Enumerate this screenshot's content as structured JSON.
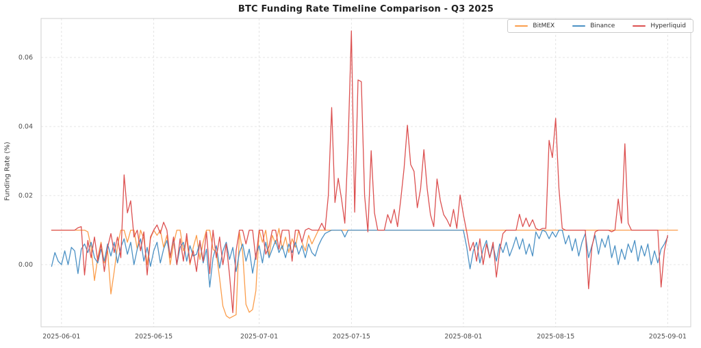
{
  "figure": {
    "title": "BTC Funding Rate Timeline Comparison - Q3 2025"
  },
  "chart_data": {
    "type": "line",
    "title": "BTC Funding Rate Timeline Comparison - Q3 2025",
    "xlabel": "",
    "ylabel": "Funding Rate (%)",
    "grid": true,
    "grid_style": "dashed",
    "legend_position": "upper right",
    "x_epoch_label": "2025-06-01",
    "x_start_day": -1.5,
    "x_step_days": 0.5,
    "xlim_days": [
      -3.1,
      95.5
    ],
    "ylim": [
      -0.018,
      0.0713
    ],
    "x_ticks": [
      {
        "day": 0,
        "label": "2025-06-01"
      },
      {
        "day": 14,
        "label": "2025-06-15"
      },
      {
        "day": 30,
        "label": "2025-07-01"
      },
      {
        "day": 44,
        "label": "2025-07-15"
      },
      {
        "day": 61,
        "label": "2025-08-01"
      },
      {
        "day": 75,
        "label": "2025-08-15"
      },
      {
        "day": 92,
        "label": "2025-09-01"
      }
    ],
    "y_ticks": [
      {
        "value": 0.0,
        "label": "0.00"
      },
      {
        "value": 0.02,
        "label": "0.02"
      },
      {
        "value": 0.04,
        "label": "0.04"
      },
      {
        "value": 0.06,
        "label": "0.06"
      }
    ],
    "series": [
      {
        "name": "BitMEX",
        "color": "#fb9d4b",
        "values": [
          0.01,
          0.01,
          0.01,
          0.01,
          0.01,
          0.01,
          0.01,
          0.01,
          0.01,
          0.01,
          0.01,
          0.0095,
          0.005,
          -0.0046,
          0.002,
          0.0065,
          0.0005,
          0.004,
          -0.0085,
          -0.002,
          0.0055,
          0.01,
          0.01,
          0.0065,
          0.01,
          0.01,
          0.0045,
          0.01,
          0.0075,
          0.0,
          0.0075,
          0.01,
          0.0085,
          0.01,
          0.005,
          0.0085,
          0.0,
          0.006,
          0.01,
          0.01,
          0.004,
          0.0075,
          0.0,
          0.005,
          0.0085,
          0.0015,
          0.0065,
          0.01,
          0.01,
          0.0045,
          0.0035,
          -0.004,
          -0.012,
          -0.0148,
          -0.0155,
          -0.015,
          -0.0145,
          0.0095,
          0.0035,
          -0.0115,
          -0.0138,
          -0.013,
          -0.0075,
          0.01,
          0.0065,
          0.01,
          0.0025,
          0.0085,
          0.006,
          0.0105,
          0.0045,
          0.008,
          0.0035,
          0.0075,
          0.005,
          0.01,
          0.0065,
          0.004,
          0.0085,
          0.006,
          0.008,
          0.01,
          0.01,
          0.01,
          0.01,
          0.01,
          0.01,
          0.01,
          0.01,
          0.01,
          0.01,
          0.01,
          0.01,
          0.01,
          0.01,
          0.01,
          0.01,
          0.01,
          0.01,
          0.01,
          0.01,
          0.01,
          0.01,
          0.01,
          0.01,
          0.01,
          0.01,
          0.01,
          0.01,
          0.01,
          0.01,
          0.01,
          0.01,
          0.01,
          0.01,
          0.01,
          0.01,
          0.01,
          0.01,
          0.01,
          0.01,
          0.01,
          0.01,
          0.01,
          0.01,
          0.01,
          0.01,
          0.01,
          0.01,
          0.01,
          0.01,
          0.01,
          0.01,
          0.01,
          0.01,
          0.01,
          0.01,
          0.01,
          0.01,
          0.01,
          0.01,
          0.01,
          0.01,
          0.01,
          0.01,
          0.01,
          0.01,
          0.01,
          0.01,
          0.01,
          0.01,
          0.01,
          0.01,
          0.01,
          0.01,
          0.01,
          0.01,
          0.01,
          0.01,
          0.01,
          0.01,
          0.01,
          0.01,
          0.01,
          0.01,
          0.01,
          0.01,
          0.01,
          0.01,
          0.01,
          0.01,
          0.01,
          0.01,
          0.01,
          0.01,
          0.01,
          0.01,
          0.01,
          0.01,
          0.01,
          0.01,
          0.01,
          0.01,
          0.01,
          0.01,
          0.01,
          0.01,
          0.01,
          0.01,
          0.01,
          0.01
        ]
      },
      {
        "name": "Binance",
        "color": "#4a90c4",
        "values": [
          -0.0005,
          0.0035,
          0.001,
          0.0,
          0.004,
          0.0,
          0.005,
          0.004,
          -0.0026,
          0.0045,
          0.006,
          0.0035,
          0.0065,
          0.002,
          0.0005,
          0.0045,
          0.001,
          0.006,
          0.0025,
          0.0065,
          0.0005,
          0.005,
          0.0075,
          0.003,
          0.0065,
          0.0,
          0.0045,
          0.0075,
          0.001,
          0.005,
          -0.0005,
          0.004,
          0.0065,
          0.0005,
          0.0045,
          0.007,
          0.0025,
          0.0075,
          0.0,
          0.005,
          0.0065,
          0.001,
          0.0055,
          0.0025,
          0.003,
          0.0065,
          0.0005,
          0.0045,
          -0.0065,
          0.002,
          0.0055,
          -0.001,
          0.004,
          0.0065,
          0.0015,
          0.005,
          -0.002,
          0.0035,
          0.006,
          0.001,
          0.0045,
          -0.0025,
          0.003,
          0.0055,
          0.0005,
          0.0065,
          0.002,
          0.0045,
          0.007,
          0.0035,
          0.0055,
          0.002,
          0.006,
          0.0035,
          0.0065,
          0.003,
          0.0055,
          0.002,
          0.006,
          0.0035,
          0.0025,
          0.0055,
          0.0075,
          0.009,
          0.0095,
          0.01,
          0.01,
          0.01,
          0.01,
          0.008,
          0.01,
          0.01,
          0.01,
          0.01,
          0.01,
          0.01,
          0.01,
          0.01,
          0.01,
          0.01,
          0.01,
          0.01,
          0.01,
          0.01,
          0.01,
          0.01,
          0.01,
          0.01,
          0.01,
          0.01,
          0.01,
          0.01,
          0.01,
          0.01,
          0.01,
          0.01,
          0.01,
          0.01,
          0.01,
          0.01,
          0.01,
          0.01,
          0.01,
          0.01,
          0.01,
          0.01,
          0.005,
          -0.0012,
          0.004,
          0.0065,
          0.0005,
          0.0045,
          0.007,
          0.002,
          0.0055,
          0.001,
          0.006,
          0.0035,
          0.0065,
          0.0025,
          0.005,
          0.008,
          0.0045,
          0.0075,
          0.003,
          0.006,
          0.0025,
          0.0095,
          0.0075,
          0.01,
          0.0095,
          0.0075,
          0.0095,
          0.008,
          0.01,
          0.01,
          0.006,
          0.0085,
          0.004,
          0.0075,
          0.0025,
          0.0065,
          0.009,
          0.002,
          0.0055,
          0.0085,
          0.003,
          0.0075,
          0.005,
          0.0085,
          0.002,
          0.0055,
          0.0,
          0.0045,
          0.0015,
          0.006,
          0.0035,
          0.007,
          0.001,
          0.0055,
          0.0025,
          0.006,
          0.0,
          0.004,
          0.0005,
          0.0045,
          0.006,
          0.008
        ]
      },
      {
        "name": "Hyperliquid",
        "color": "#dc5050",
        "values": [
          0.01,
          0.01,
          0.01,
          0.01,
          0.01,
          0.01,
          0.01,
          0.01,
          0.0107,
          0.011,
          -0.003,
          0.007,
          0.002,
          0.008,
          0.001,
          0.006,
          -0.002,
          0.005,
          0.009,
          0.0035,
          0.008,
          0.002,
          0.026,
          0.015,
          0.0185,
          0.008,
          0.01,
          0.004,
          0.0095,
          -0.003,
          0.008,
          0.01,
          0.0115,
          0.009,
          0.0123,
          0.01,
          0.002,
          0.008,
          0.0,
          0.0075,
          0.001,
          0.009,
          0.0005,
          0.004,
          -0.002,
          0.007,
          0.001,
          0.0095,
          -0.0026,
          0.01,
          0.002,
          0.008,
          0.0,
          0.006,
          -0.003,
          -0.0139,
          0.004,
          0.01,
          0.01,
          0.006,
          0.01,
          0.01,
          0.0015,
          0.01,
          0.01,
          0.003,
          0.0053,
          0.01,
          0.01,
          0.0045,
          0.01,
          0.01,
          0.01,
          0.001,
          0.01,
          0.01,
          0.0065,
          0.01,
          0.0105,
          0.01,
          0.01,
          0.01,
          0.012,
          0.01,
          0.02,
          0.0455,
          0.018,
          0.025,
          0.019,
          0.012,
          0.035,
          0.0677,
          0.0152,
          0.0535,
          0.053,
          0.02,
          0.0095,
          0.033,
          0.015,
          0.01,
          0.01,
          0.01,
          0.0145,
          0.012,
          0.016,
          0.011,
          0.019,
          0.028,
          0.0404,
          0.029,
          0.027,
          0.0165,
          0.022,
          0.0333,
          0.022,
          0.0145,
          0.011,
          0.0248,
          0.0185,
          0.0145,
          0.013,
          0.011,
          0.016,
          0.0105,
          0.0202,
          0.0145,
          0.0095,
          0.004,
          0.0065,
          0.001,
          0.0075,
          0.0,
          0.006,
          0.002,
          0.0065,
          -0.0036,
          0.004,
          0.009,
          0.01,
          0.01,
          0.01,
          0.01,
          0.0146,
          0.011,
          0.0135,
          0.011,
          0.013,
          0.0105,
          0.01,
          0.0105,
          0.0105,
          0.036,
          0.031,
          0.0424,
          0.022,
          0.0105,
          0.01,
          0.01,
          0.01,
          0.01,
          0.01,
          0.01,
          0.01,
          -0.007,
          0.005,
          0.0095,
          0.01,
          0.01,
          0.01,
          0.01,
          0.0095,
          0.01,
          0.019,
          0.012,
          0.035,
          0.012,
          0.01,
          0.01,
          0.01,
          0.01,
          0.01,
          0.01,
          0.01,
          0.01,
          0.01,
          -0.0065,
          0.004,
          0.0085
        ]
      }
    ]
  }
}
